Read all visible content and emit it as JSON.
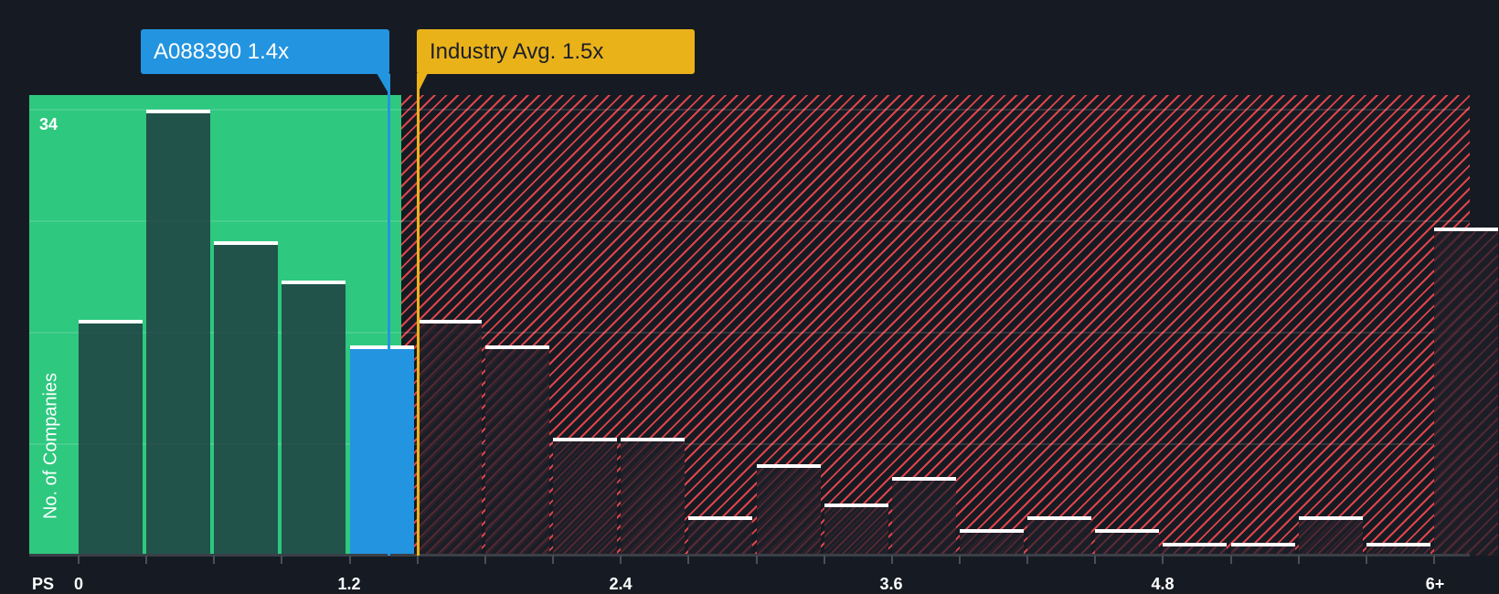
{
  "subject": {
    "ticker": "A088390",
    "value_label": "A088390 1.4x",
    "value": 1.4,
    "color": "#2394e0"
  },
  "industry": {
    "value_label": "Industry Avg. 1.5x",
    "value": 1.5,
    "color": "#eab219"
  },
  "axis": {
    "y_title": "No. of Companies",
    "y_max_label": "34",
    "x_prefix": "PS",
    "x_ticks": [
      "0",
      "1.2",
      "2.4",
      "3.6",
      "4.8",
      "6+"
    ]
  },
  "colors": {
    "background": "#161b23",
    "undervalued_zone": "#2ec87f",
    "overvalued_stripe": "#e0444a",
    "bar_cap": "#ffffff"
  },
  "chart_data": {
    "type": "bar",
    "title": "",
    "xlabel": "PS",
    "ylabel": "No. of Companies",
    "categories": [
      "0-0.3",
      "0.3-0.6",
      "0.6-0.9",
      "0.9-1.2",
      "1.2-1.5",
      "1.5-1.8",
      "1.8-2.1",
      "2.1-2.4",
      "2.4-2.7",
      "2.7-3.0",
      "3.0-3.3",
      "3.3-3.6",
      "3.6-3.9",
      "3.9-4.2",
      "4.2-4.5",
      "4.5-4.8",
      "4.8-5.1",
      "5.1-5.4",
      "5.4-5.7",
      "5.7-6.0",
      "6+"
    ],
    "values": [
      18,
      34,
      24,
      21,
      16,
      18,
      16,
      9,
      9,
      3,
      7,
      4,
      6,
      2,
      3,
      2,
      1,
      1,
      3,
      1,
      25
    ],
    "highlight_index": 4,
    "x_tick_labels": [
      "0",
      "1.2",
      "2.4",
      "3.6",
      "4.8",
      "6+"
    ],
    "ylim": [
      0,
      34
    ],
    "grid": true,
    "annotations": [
      {
        "label": "A088390 1.4x",
        "x": 1.4
      },
      {
        "label": "Industry Avg. 1.5x",
        "x": 1.5
      }
    ]
  }
}
